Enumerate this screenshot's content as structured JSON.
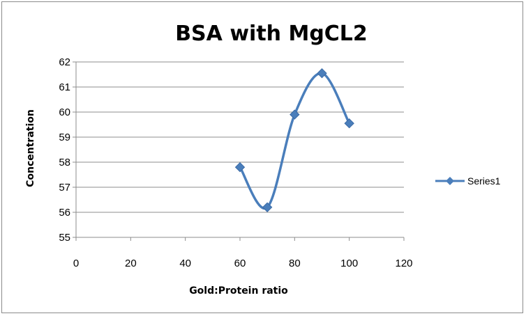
{
  "chart_data": {
    "type": "scatter",
    "title": "BSA with MgCL2",
    "xlabel": "Gold:Protein ratio",
    "ylabel": "Concentration",
    "xlim": [
      0,
      120
    ],
    "ylim": [
      55,
      62
    ],
    "xticks": [
      0,
      20,
      40,
      60,
      80,
      100,
      120
    ],
    "yticks": [
      55,
      56,
      57,
      58,
      59,
      60,
      61,
      62
    ],
    "grid": true,
    "legend_position": "right",
    "smoothed_line": true,
    "marker": "diamond",
    "series": [
      {
        "name": "Series1",
        "color": "#4a7ebb",
        "x": [
          60,
          70,
          80,
          90,
          100
        ],
        "y": [
          57.8,
          56.2,
          59.9,
          61.55,
          59.55
        ]
      }
    ]
  }
}
